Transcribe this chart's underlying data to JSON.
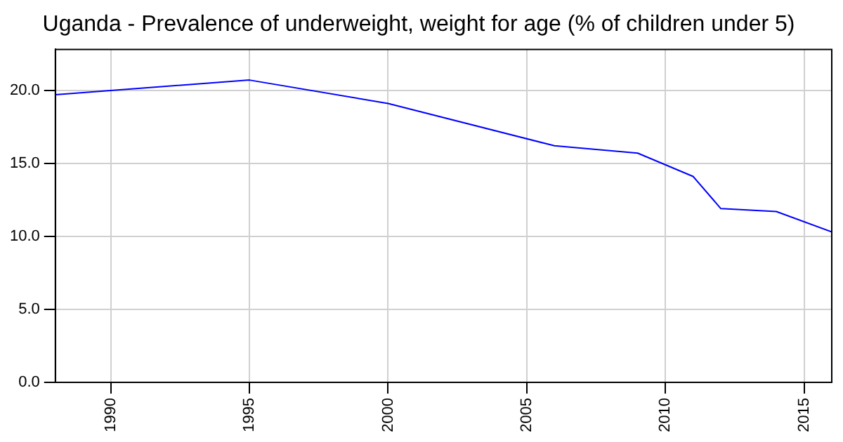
{
  "chart_data": {
    "type": "line",
    "title": "Uganda - Prevalence of underweight, weight for age (% of children under 5)",
    "x": [
      1988,
      1995,
      2000,
      2006,
      2009,
      2011,
      2012,
      2014,
      2016
    ],
    "series": [
      {
        "color": "#0000ff",
        "values": [
          19.7,
          20.7,
          19.1,
          16.2,
          15.7,
          14.1,
          11.9,
          11.7,
          10.3
        ]
      }
    ],
    "xlim": [
      1988,
      2016
    ],
    "xticks": [
      1990,
      1995,
      2000,
      2005,
      2010,
      2015
    ],
    "ylim": [
      0,
      22.8
    ],
    "yticks": [
      {
        "value": 0,
        "label": "0.0"
      },
      {
        "value": 5,
        "label": "5.0"
      },
      {
        "value": 10,
        "label": "10.0"
      },
      {
        "value": 15,
        "label": "15.0"
      },
      {
        "value": 20,
        "label": "20.0"
      }
    ],
    "grid": true,
    "legend": false,
    "marker": "none",
    "line_style": "solid"
  }
}
